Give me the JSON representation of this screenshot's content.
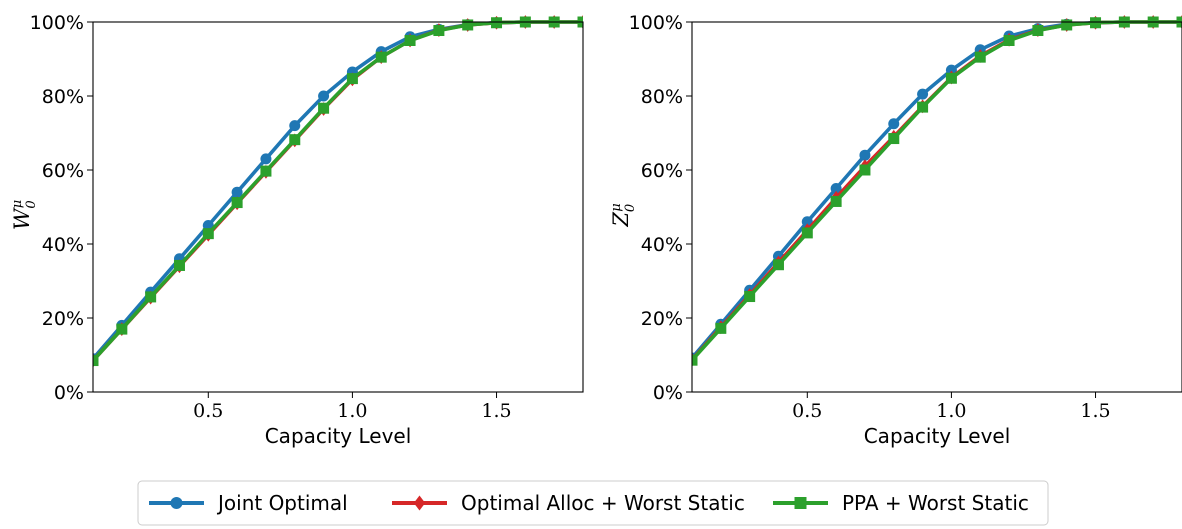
{
  "chart_data": [
    {
      "type": "line",
      "xlabel": "Capacity Level",
      "ylabel": {
        "main": "W",
        "sub": "0",
        "sup": "μ"
      },
      "xlim": [
        0.1,
        1.8
      ],
      "ylim": [
        0,
        1
      ],
      "xticks": [
        0.5,
        1.0,
        1.5
      ],
      "xtick_labels": [
        "0.5",
        "1.0",
        "1.5"
      ],
      "yticks": [
        0,
        0.2,
        0.4,
        0.6,
        0.8,
        1.0
      ],
      "ytick_labels": [
        "0%",
        "20%",
        "40%",
        "60%",
        "80%",
        "100%"
      ],
      "x": [
        0.1,
        0.2,
        0.3,
        0.4,
        0.5,
        0.6,
        0.7,
        0.8,
        0.9,
        1.0,
        1.1,
        1.2,
        1.3,
        1.4,
        1.5,
        1.6,
        1.7,
        1.8
      ],
      "series": [
        {
          "name": "Joint Optimal",
          "color": "#1f77b4",
          "marker": "circle",
          "values": [
            0.09,
            0.18,
            0.27,
            0.36,
            0.45,
            0.54,
            0.63,
            0.72,
            0.8,
            0.865,
            0.92,
            0.96,
            0.98,
            0.993,
            0.998,
            1.0,
            1.0,
            1.0
          ]
        },
        {
          "name": "Optimal Alloc + Worst Static",
          "color": "#d62728",
          "marker": "diamond",
          "values": [
            0.085,
            0.17,
            0.255,
            0.34,
            0.425,
            0.51,
            0.595,
            0.68,
            0.765,
            0.845,
            0.905,
            0.95,
            0.978,
            0.992,
            0.998,
            1.0,
            1.0,
            1.0
          ]
        },
        {
          "name": "PPA + Worst Static",
          "color": "#2ca02c",
          "marker": "square",
          "values": [
            0.085,
            0.17,
            0.257,
            0.342,
            0.428,
            0.512,
            0.597,
            0.682,
            0.767,
            0.847,
            0.905,
            0.95,
            0.977,
            0.992,
            0.998,
            1.0,
            1.0,
            1.0
          ]
        }
      ]
    },
    {
      "type": "line",
      "xlabel": "Capacity Level",
      "ylabel": {
        "main": "Z",
        "sub": "0",
        "sup": "μ"
      },
      "xlim": [
        0.1,
        1.8
      ],
      "ylim": [
        0,
        1
      ],
      "xticks": [
        0.5,
        1.0,
        1.5
      ],
      "xtick_labels": [
        "0.5",
        "1.0",
        "1.5"
      ],
      "yticks": [
        0,
        0.2,
        0.4,
        0.6,
        0.8,
        1.0
      ],
      "ytick_labels": [
        "0%",
        "20%",
        "40%",
        "60%",
        "80%",
        "100%"
      ],
      "x": [
        0.1,
        0.2,
        0.3,
        0.4,
        0.5,
        0.6,
        0.7,
        0.8,
        0.9,
        1.0,
        1.1,
        1.2,
        1.3,
        1.4,
        1.5,
        1.6,
        1.7,
        1.8
      ],
      "series": [
        {
          "name": "Joint Optimal",
          "color": "#1f77b4",
          "marker": "circle",
          "values": [
            0.092,
            0.183,
            0.275,
            0.367,
            0.46,
            0.55,
            0.64,
            0.725,
            0.805,
            0.87,
            0.925,
            0.962,
            0.982,
            0.994,
            0.998,
            1.0,
            1.0,
            1.0
          ]
        },
        {
          "name": "Optimal Alloc + Worst Static",
          "color": "#d62728",
          "marker": "diamond",
          "values": [
            0.087,
            0.175,
            0.262,
            0.35,
            0.437,
            0.525,
            0.61,
            0.69,
            0.772,
            0.85,
            0.908,
            0.952,
            0.978,
            0.992,
            0.998,
            1.0,
            1.0,
            1.0
          ]
        },
        {
          "name": "PPA + Worst Static",
          "color": "#2ca02c",
          "marker": "square",
          "values": [
            0.086,
            0.172,
            0.258,
            0.344,
            0.43,
            0.515,
            0.6,
            0.685,
            0.77,
            0.848,
            0.905,
            0.95,
            0.977,
            0.992,
            0.998,
            1.0,
            1.0,
            1.0
          ]
        }
      ]
    }
  ],
  "legend": {
    "placement": "bottom-center",
    "items": [
      {
        "label": "Joint Optimal",
        "color": "#1f77b4",
        "marker": "circle"
      },
      {
        "label": "Optimal Alloc + Worst Static",
        "color": "#d62728",
        "marker": "diamond"
      },
      {
        "label": "PPA + Worst Static",
        "color": "#2ca02c",
        "marker": "square"
      }
    ]
  }
}
